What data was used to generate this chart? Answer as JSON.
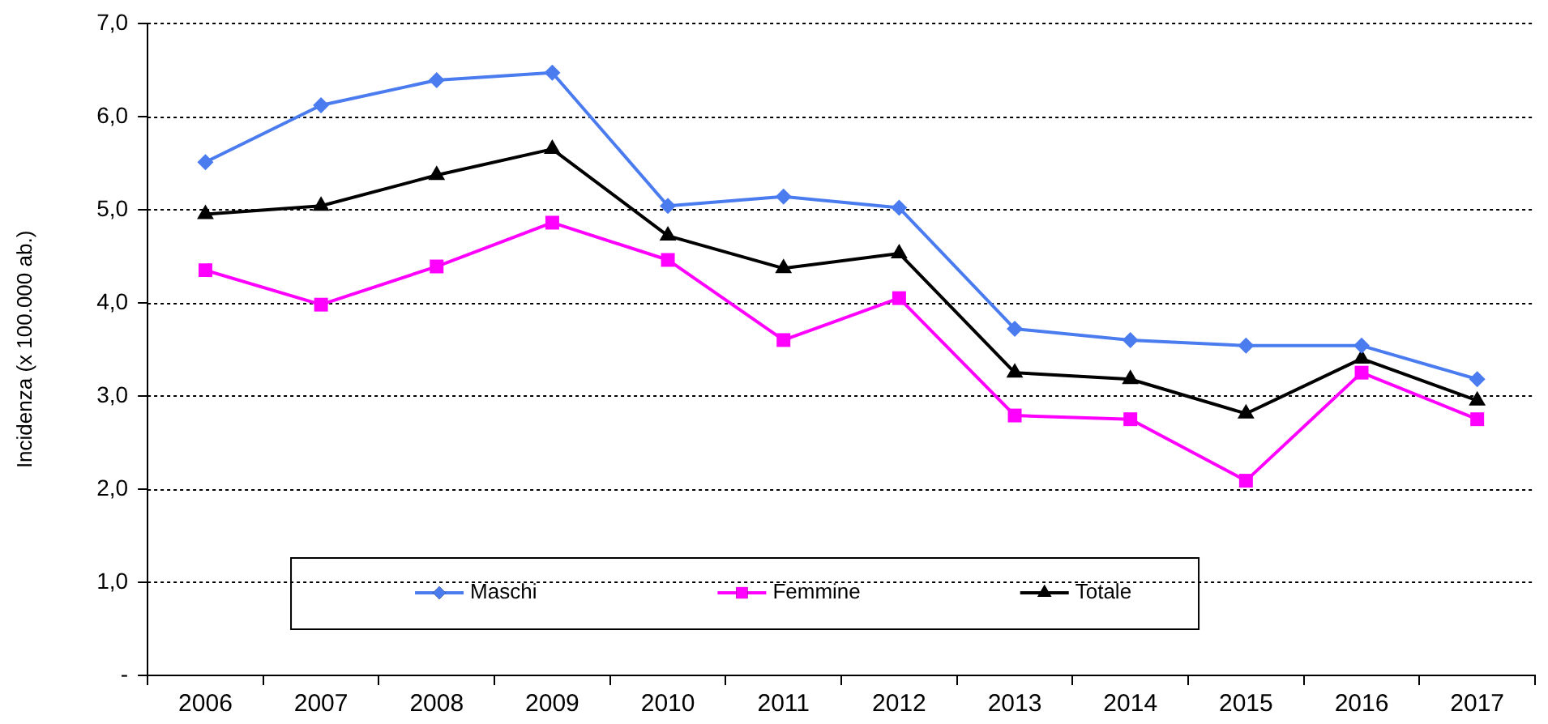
{
  "chart_data": {
    "type": "line",
    "ylabel": "Incidenza (x 100.000 ab.)",
    "categories": [
      "2006",
      "2007",
      "2008",
      "2009",
      "2010",
      "2011",
      "2012",
      "2013",
      "2014",
      "2015",
      "2016",
      "2017"
    ],
    "series": [
      {
        "name": "Maschi",
        "color": "#4a7cf0",
        "marker": "diamond",
        "values": [
          5.51,
          6.12,
          6.39,
          6.47,
          5.04,
          5.14,
          5.02,
          3.72,
          3.6,
          3.54,
          3.54,
          3.18
        ]
      },
      {
        "name": "Femmine",
        "color": "#ff00ff",
        "marker": "square",
        "values": [
          4.35,
          3.98,
          4.39,
          4.86,
          4.46,
          3.6,
          4.05,
          2.79,
          2.75,
          2.09,
          3.25,
          2.75
        ]
      },
      {
        "name": "Totale",
        "color": "#000000",
        "marker": "triangle",
        "values": [
          4.95,
          5.04,
          5.37,
          5.65,
          4.72,
          4.37,
          4.53,
          3.25,
          3.18,
          2.81,
          3.4,
          2.95
        ]
      }
    ],
    "ylim": [
      0,
      7
    ],
    "yticks": [
      {
        "value": 0,
        "label": "-"
      },
      {
        "value": 1,
        "label": "1,0"
      },
      {
        "value": 2,
        "label": "2,0"
      },
      {
        "value": 3,
        "label": "3,0"
      },
      {
        "value": 4,
        "label": "4,0"
      },
      {
        "value": 5,
        "label": "5,0"
      },
      {
        "value": 6,
        "label": "6,0"
      },
      {
        "value": 7,
        "label": "7,0"
      }
    ],
    "grid": "y",
    "legend": "bottom",
    "line_style": "solid"
  }
}
